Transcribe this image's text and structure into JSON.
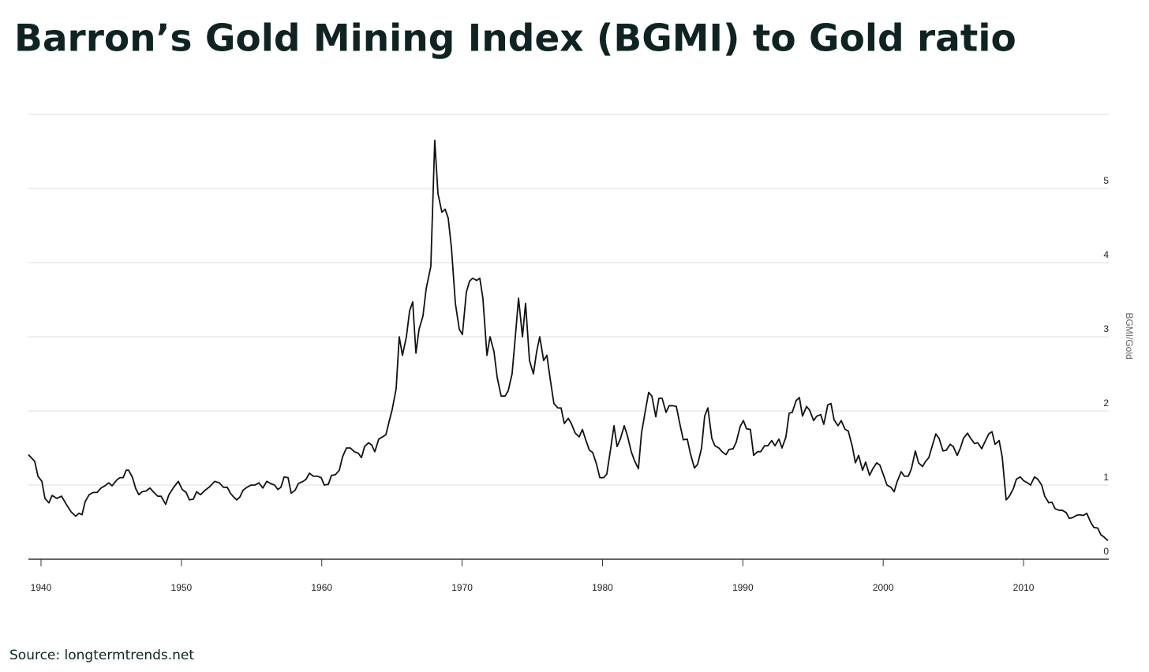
{
  "chart_data": {
    "type": "line",
    "title": "Barron’s Gold Mining Index (BGMI) to Gold ratio",
    "source": "Source: longtermtrends.net",
    "y_label": "BGMI/Gold",
    "xlim": [
      1939.1,
      2016.07
    ],
    "xticks": [
      1940,
      1950,
      1960,
      1970,
      1980,
      1990,
      2000,
      2010
    ],
    "ylim": [
      0,
      6
    ],
    "yticks": [
      0,
      1,
      2,
      3,
      4,
      5
    ],
    "grid": true,
    "color": "#111111",
    "x": [
      1939.1,
      1939.55,
      1939.78,
      1940.06,
      1940.28,
      1940.56,
      1940.79,
      1941.12,
      1941.46,
      1941.8,
      1942.14,
      1942.47,
      1942.7,
      1942.92,
      1943.15,
      1943.43,
      1943.71,
      1943.99,
      1944.27,
      1944.55,
      1944.83,
      1945.06,
      1945.4,
      1945.62,
      1945.85,
      1946.07,
      1946.24,
      1946.52,
      1946.75,
      1946.97,
      1947.2,
      1947.48,
      1947.76,
      1948.04,
      1948.32,
      1948.55,
      1948.88,
      1949.11,
      1949.45,
      1949.78,
      1950.06,
      1950.34,
      1950.57,
      1950.85,
      1951.08,
      1951.36,
      1951.69,
      1952.03,
      1952.37,
      1952.71,
      1952.99,
      1953.27,
      1953.49,
      1953.72,
      1953.94,
      1954.17,
      1954.39,
      1954.67,
      1954.96,
      1955.24,
      1955.52,
      1955.8,
      1956.08,
      1956.36,
      1956.64,
      1956.87,
      1957.09,
      1957.32,
      1957.6,
      1957.82,
      1958.1,
      1958.33,
      1958.67,
      1958.89,
      1959.12,
      1959.4,
      1959.68,
      1959.96,
      1960.18,
      1960.47,
      1960.69,
      1960.97,
      1961.25,
      1961.48,
      1961.76,
      1962.04,
      1962.32,
      1962.6,
      1962.83,
      1963.05,
      1963.33,
      1963.56,
      1963.78,
      1964.06,
      1964.34,
      1964.57,
      1964.79,
      1965.02,
      1965.3,
      1965.52,
      1965.75,
      1966.03,
      1966.26,
      1966.48,
      1966.71,
      1966.93,
      1967.21,
      1967.44,
      1967.77,
      1968.05,
      1968.28,
      1968.56,
      1968.79,
      1969.01,
      1969.24,
      1969.52,
      1969.8,
      1970.02,
      1970.3,
      1970.53,
      1970.75,
      1971.04,
      1971.26,
      1971.48,
      1971.77,
      1971.99,
      1972.27,
      1972.5,
      1972.78,
      1973.06,
      1973.28,
      1973.56,
      1973.79,
      1974.02,
      1974.3,
      1974.52,
      1974.8,
      1975.08,
      1975.31,
      1975.53,
      1975.81,
      1976.04,
      1976.26,
      1976.54,
      1976.83,
      1977.05,
      1977.28,
      1977.56,
      1977.78,
      1978.06,
      1978.34,
      1978.57,
      1978.79,
      1979.07,
      1979.3,
      1979.58,
      1979.81,
      1980.09,
      1980.31,
      1980.59,
      1980.82,
      1981.04,
      1981.27,
      1981.55,
      1981.77,
      1982.05,
      1982.28,
      1982.56,
      1982.78,
      1983.07,
      1983.29,
      1983.52,
      1983.8,
      1984.02,
      1984.25,
      1984.53,
      1984.75,
      1985.03,
      1985.26,
      1985.54,
      1985.76,
      1986.04,
      1986.27,
      1986.55,
      1986.78,
      1987.06,
      1987.28,
      1987.51,
      1987.79,
      1988.01,
      1988.29,
      1988.52,
      1988.8,
      1989.02,
      1989.31,
      1989.53,
      1989.81,
      1990.04,
      1990.26,
      1990.54,
      1990.77,
      1991.05,
      1991.27,
      1991.55,
      1991.78,
      1992.06,
      1992.29,
      1992.57,
      1992.79,
      1993.07,
      1993.3,
      1993.52,
      1993.8,
      1994.03,
      1994.25,
      1994.54,
      1994.76,
      1995.04,
      1995.27,
      1995.55,
      1995.77,
      1996.05,
      1996.28,
      1996.5,
      1996.78,
      1997.01,
      1997.29,
      1997.51,
      1997.8,
      1998.02,
      1998.25,
      1998.53,
      1998.75,
      1999.03,
      1999.26,
      1999.54,
      1999.76,
      2000.05,
      2000.27,
      2000.55,
      2000.78,
      2001.0,
      2001.28,
      2001.51,
      2001.79,
      2002.01,
      2002.29,
      2002.52,
      2002.8,
      2003.02,
      2003.25,
      2003.53,
      2003.75,
      2003.98,
      2004.26,
      2004.49,
      2004.77,
      2004.99,
      2005.27,
      2005.5,
      2005.72,
      2006.01,
      2006.23,
      2006.51,
      2006.74,
      2007.02,
      2007.24,
      2007.52,
      2007.75,
      2007.97,
      2008.26,
      2008.48,
      2008.76,
      2008.99,
      2009.27,
      2009.49,
      2009.77,
      2010.0,
      2010.28,
      2010.5,
      2010.78,
      2011.01,
      2011.29,
      2011.51,
      2011.8,
      2012.02,
      2012.25,
      2012.53,
      2012.75,
      2013.03,
      2013.26,
      2013.48,
      2013.76,
      2013.99,
      2014.27,
      2014.5,
      2014.78,
      2015.0,
      2015.28,
      2015.51,
      2015.73,
      2016.01
    ],
    "series": [
      {
        "name": "BGMI/Gold",
        "values": [
          1.41,
          1.32,
          1.12,
          1.05,
          0.82,
          0.76,
          0.86,
          0.82,
          0.85,
          0.74,
          0.64,
          0.58,
          0.62,
          0.6,
          0.78,
          0.87,
          0.9,
          0.9,
          0.96,
          0.99,
          1.03,
          0.99,
          1.07,
          1.1,
          1.1,
          1.2,
          1.2,
          1.1,
          0.95,
          0.87,
          0.91,
          0.92,
          0.96,
          0.9,
          0.85,
          0.85,
          0.74,
          0.87,
          0.97,
          1.05,
          0.94,
          0.9,
          0.8,
          0.81,
          0.91,
          0.87,
          0.93,
          0.98,
          1.05,
          1.03,
          0.97,
          0.97,
          0.89,
          0.84,
          0.8,
          0.84,
          0.93,
          0.97,
          1.0,
          1.0,
          1.03,
          0.96,
          1.05,
          1.02,
          1.0,
          0.94,
          0.97,
          1.11,
          1.1,
          0.89,
          0.93,
          1.02,
          1.05,
          1.08,
          1.16,
          1.12,
          1.12,
          1.1,
          1.0,
          1.01,
          1.13,
          1.14,
          1.2,
          1.38,
          1.5,
          1.5,
          1.45,
          1.43,
          1.37,
          1.52,
          1.57,
          1.54,
          1.45,
          1.62,
          1.65,
          1.68,
          1.85,
          2.02,
          2.3,
          3.0,
          2.75,
          3.0,
          3.35,
          3.47,
          2.78,
          3.1,
          3.28,
          3.65,
          3.95,
          5.65,
          4.93,
          4.68,
          4.72,
          4.6,
          4.2,
          3.45,
          3.1,
          3.03,
          3.6,
          3.75,
          3.79,
          3.76,
          3.79,
          3.52,
          2.75,
          3.0,
          2.8,
          2.45,
          2.2,
          2.2,
          2.27,
          2.5,
          3.0,
          3.52,
          3.0,
          3.45,
          2.68,
          2.5,
          2.8,
          3.0,
          2.68,
          2.75,
          2.45,
          2.1,
          2.04,
          2.04,
          1.83,
          1.9,
          1.83,
          1.7,
          1.65,
          1.75,
          1.62,
          1.47,
          1.44,
          1.28,
          1.1,
          1.1,
          1.15,
          1.5,
          1.8,
          1.52,
          1.62,
          1.8,
          1.67,
          1.45,
          1.33,
          1.22,
          1.7,
          2.02,
          2.25,
          2.2,
          1.92,
          2.17,
          2.17,
          1.98,
          2.07,
          2.07,
          2.06,
          1.8,
          1.61,
          1.62,
          1.42,
          1.23,
          1.28,
          1.5,
          1.93,
          2.04,
          1.63,
          1.53,
          1.5,
          1.45,
          1.41,
          1.48,
          1.49,
          1.58,
          1.79,
          1.87,
          1.76,
          1.75,
          1.4,
          1.45,
          1.45,
          1.53,
          1.53,
          1.6,
          1.53,
          1.62,
          1.5,
          1.65,
          1.97,
          1.98,
          2.14,
          2.18,
          1.93,
          2.06,
          2.01,
          1.87,
          1.93,
          1.95,
          1.82,
          2.08,
          2.1,
          1.88,
          1.8,
          1.87,
          1.75,
          1.73,
          1.52,
          1.3,
          1.4,
          1.2,
          1.31,
          1.13,
          1.22,
          1.3,
          1.27,
          1.12,
          1.0,
          0.97,
          0.91,
          1.05,
          1.18,
          1.12,
          1.12,
          1.22,
          1.46,
          1.3,
          1.25,
          1.32,
          1.37,
          1.55,
          1.69,
          1.63,
          1.46,
          1.47,
          1.55,
          1.52,
          1.4,
          1.5,
          1.63,
          1.7,
          1.63,
          1.56,
          1.57,
          1.49,
          1.58,
          1.69,
          1.72,
          1.55,
          1.6,
          1.38,
          0.8,
          0.85,
          0.95,
          1.08,
          1.11,
          1.06,
          1.03,
          1.0,
          1.11,
          1.08,
          1.0,
          0.85,
          0.76,
          0.77,
          0.68,
          0.66,
          0.66,
          0.63,
          0.55,
          0.56,
          0.59,
          0.6,
          0.59,
          0.62,
          0.5,
          0.43,
          0.42,
          0.33,
          0.3,
          0.25
        ]
      }
    ]
  }
}
